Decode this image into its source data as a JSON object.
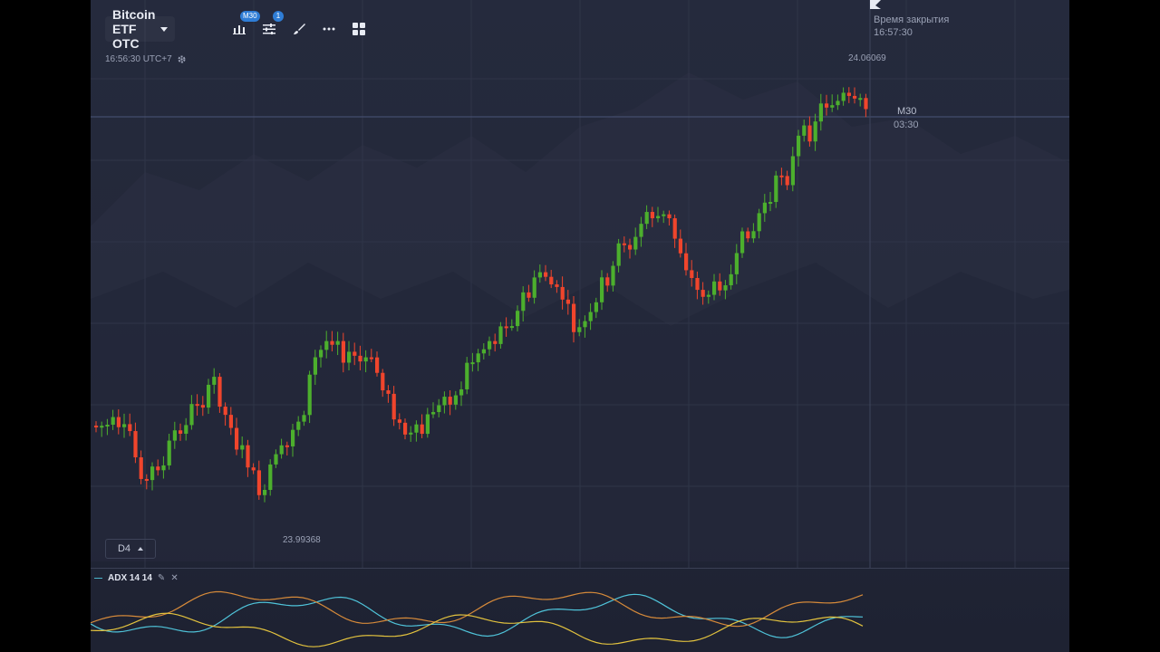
{
  "toolbar": {
    "asset_label": "Bitcoin ETF OTC",
    "chart_type_badge": "M30",
    "indicators_badge": "1",
    "icons": [
      "chart-type-icon",
      "indicators-icon",
      "drawing-brush-icon",
      "more-icon",
      "layout-grid-icon"
    ]
  },
  "status": {
    "time": "16:56:30 UTC+7"
  },
  "expiration": {
    "title": "Время закрытия",
    "time": "16:57:30"
  },
  "timeframe": {
    "label": "M30",
    "countdown": "03:30"
  },
  "price_labels": {
    "high": "24.06069",
    "low": "23.99368"
  },
  "zoom": {
    "label": "D4"
  },
  "indicator": {
    "label": "ADX 14 14"
  },
  "colors": {
    "bull": "#4caf2d",
    "bear": "#f0452c",
    "adx": "#4fc3d9",
    "plus_di": "#d68a3a",
    "minus_di": "#e2c23e"
  }
}
